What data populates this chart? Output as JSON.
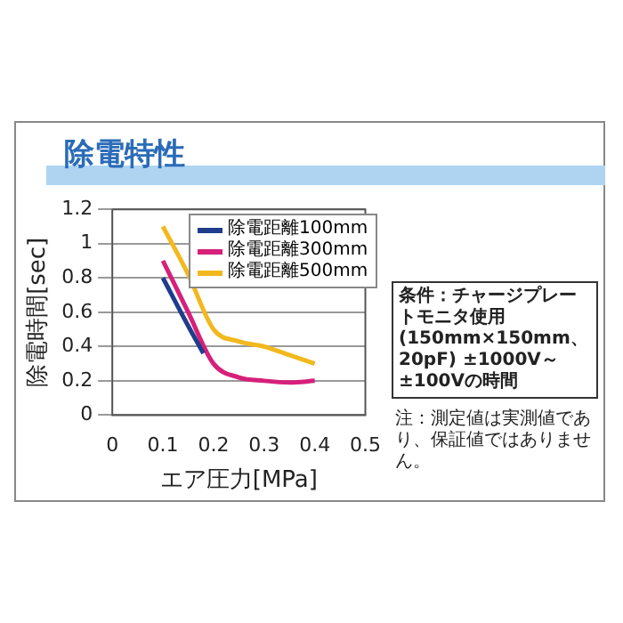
{
  "chart_data": {
    "type": "line",
    "title": "除電特性",
    "xlabel": "エア圧力[MPa]",
    "ylabel": "除電時間[sec]",
    "series": [
      {
        "name": "除電距離100mm",
        "color": "#1f3d8c",
        "x": [
          0.1,
          0.15,
          0.18
        ],
        "values": [
          0.8,
          0.52,
          0.36
        ]
      },
      {
        "name": "除電距離300mm",
        "color": "#d6207a",
        "x": [
          0.1,
          0.15,
          0.2,
          0.25,
          0.3,
          0.35,
          0.4
        ],
        "values": [
          0.9,
          0.6,
          0.3,
          0.22,
          0.2,
          0.19,
          0.2
        ]
      },
      {
        "name": "除電距離500mm",
        "color": "#f2b81e",
        "x": [
          0.1,
          0.15,
          0.2,
          0.25,
          0.3,
          0.35,
          0.4
        ],
        "values": [
          1.1,
          0.82,
          0.5,
          0.43,
          0.4,
          0.35,
          0.3
        ]
      }
    ],
    "xlim": [
      0,
      0.5
    ],
    "xticks": [
      0,
      0.1,
      0.2,
      0.3,
      0.4,
      0.5
    ],
    "ylim": [
      0,
      1.2
    ],
    "yticks": [
      0,
      0.2,
      0.4,
      0.6,
      0.8,
      1,
      1.2
    ],
    "grid": "y",
    "legend": "top right",
    "marker": "none",
    "line_style": "solid",
    "annotations": [
      "条件：チャージプレートモニタ使用 (150mm×150mm、20pF) ±1000V～±100Vの時間",
      "注：測定値は実測値であり、保証値ではありません。"
    ]
  }
}
